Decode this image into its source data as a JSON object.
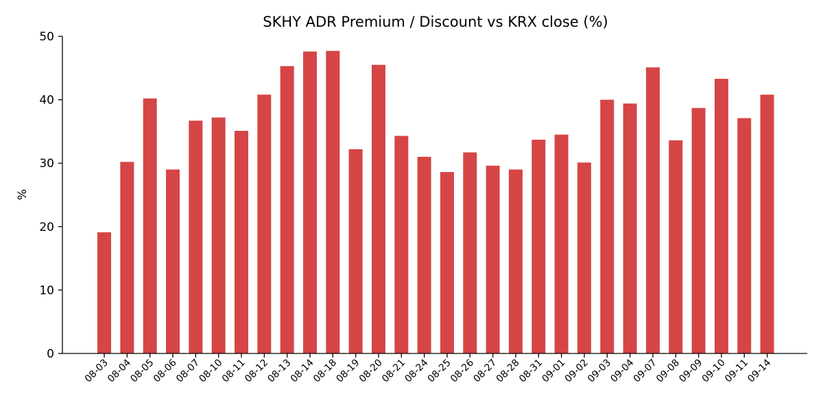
{
  "chart_data": {
    "type": "bar",
    "title": "SKHY ADR Premium / Discount vs KRX close (%)",
    "xlabel": "",
    "ylabel": "%",
    "ylim": [
      0,
      50
    ],
    "yticks": [
      0,
      10,
      20,
      30,
      40,
      50
    ],
    "grid": false,
    "legend": "none",
    "bar_color": "#d64545",
    "categories": [
      "08-03",
      "08-04",
      "08-05",
      "08-06",
      "08-07",
      "08-10",
      "08-11",
      "08-12",
      "08-13",
      "08-14",
      "08-18",
      "08-19",
      "08-20",
      "08-21",
      "08-24",
      "08-25",
      "08-26",
      "08-27",
      "08-28",
      "08-31",
      "09-01",
      "09-02",
      "09-03",
      "09-04",
      "09-07",
      "09-08",
      "09-09",
      "09-10",
      "09-11",
      "09-14"
    ],
    "values": [
      19.1,
      30.2,
      40.2,
      29.0,
      36.7,
      37.2,
      35.1,
      40.8,
      45.3,
      47.6,
      47.7,
      32.2,
      45.5,
      34.3,
      31.0,
      28.6,
      31.7,
      29.6,
      29.0,
      33.7,
      34.5,
      30.1,
      40.0,
      39.4,
      45.1,
      33.6,
      38.7,
      43.3,
      37.1,
      40.8
    ]
  }
}
